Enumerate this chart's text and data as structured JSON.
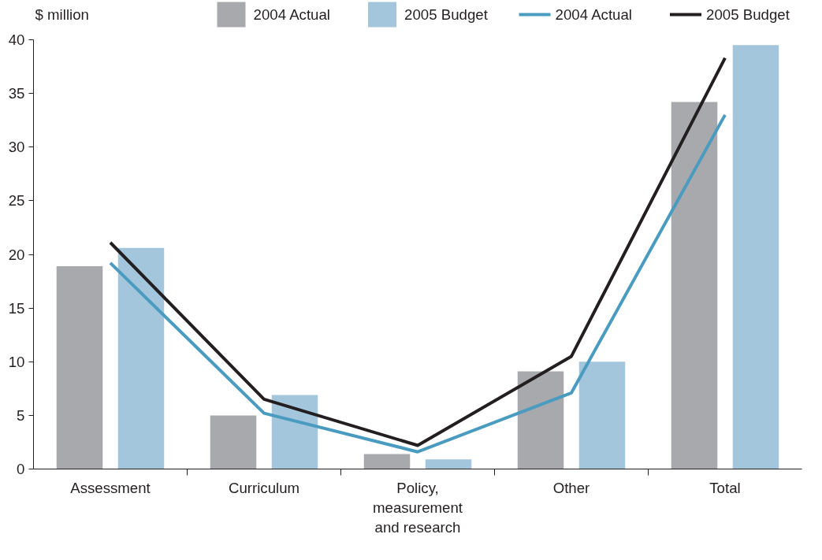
{
  "chart_data": {
    "type": "bar",
    "ylabel": "$ million",
    "categories": [
      "Assessment",
      "Curriculum",
      "Policy,\nmeasurement\nand research",
      "Other",
      "Total"
    ],
    "series": [
      {
        "name": "2004 Actual",
        "color": "#a7a9ac",
        "values": [
          18.9,
          5.0,
          1.4,
          9.1,
          34.2
        ]
      },
      {
        "name": "2005 Budget",
        "color": "#a3c6dc",
        "values": [
          20.6,
          6.9,
          0.9,
          10.0,
          39.5
        ]
      },
      {
        "name": "2004 Actual",
        "type": "line",
        "color": "#4a9bc0",
        "values": [
          19.2,
          5.2,
          1.6,
          7.1,
          33.0
        ]
      },
      {
        "name": "2005 Budget",
        "type": "line",
        "color": "#231f20",
        "values": [
          21.1,
          6.5,
          2.2,
          10.5,
          38.3
        ]
      }
    ],
    "ylim": [
      0,
      40
    ],
    "yticks": [
      0,
      5,
      10,
      15,
      20,
      25,
      30,
      35,
      40
    ],
    "legend": "top",
    "grid": false
  }
}
